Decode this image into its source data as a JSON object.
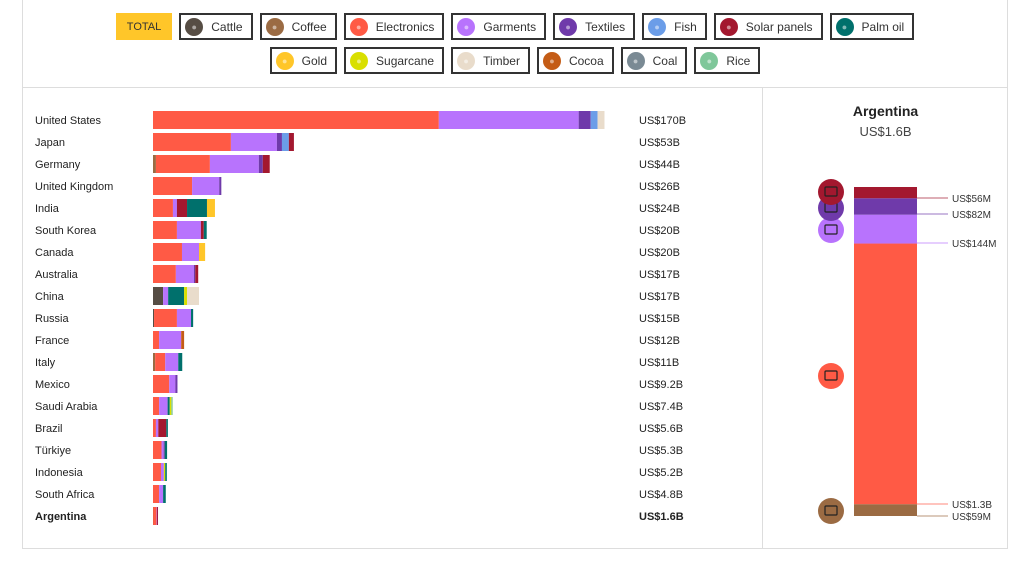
{
  "legend": {
    "total_label": "TOTAL",
    "items": [
      {
        "key": "cattle",
        "label": "Cattle",
        "color": "#564d44",
        "icon": "cow-icon"
      },
      {
        "key": "coffee",
        "label": "Coffee",
        "color": "#9b6b43",
        "icon": "coffee-bean-icon"
      },
      {
        "key": "electronics",
        "label": "Electronics",
        "color": "#ff5a45",
        "icon": "laptop-icon"
      },
      {
        "key": "garments",
        "label": "Garments",
        "color": "#b873fd",
        "icon": "tshirt-icon"
      },
      {
        "key": "textiles",
        "label": "Textiles",
        "color": "#6f3aaa",
        "icon": "fabric-icon"
      },
      {
        "key": "fish",
        "label": "Fish",
        "color": "#6b9de8",
        "icon": "fish-icon"
      },
      {
        "key": "solar",
        "label": "Solar panels",
        "color": "#a3182f",
        "icon": "solar-panel-icon"
      },
      {
        "key": "palm",
        "label": "Palm oil",
        "color": "#00706c",
        "icon": "oil-drop-icon"
      },
      {
        "key": "gold",
        "label": "Gold",
        "color": "#ffc629",
        "icon": "gold-icon"
      },
      {
        "key": "sugarcane",
        "label": "Sugarcane",
        "color": "#d9df00",
        "icon": "sugarcane-icon"
      },
      {
        "key": "timber",
        "label": "Timber",
        "color": "#e9dccb",
        "icon": "timber-icon"
      },
      {
        "key": "cocoa",
        "label": "Cocoa",
        "color": "#c45c16",
        "icon": "cocoa-icon"
      },
      {
        "key": "coal",
        "label": "Coal",
        "color": "#7a8a94",
        "icon": "coal-icon"
      },
      {
        "key": "rice",
        "label": "Rice",
        "color": "#7fc79a",
        "icon": "rice-icon"
      }
    ]
  },
  "chart_data": {
    "type": "bar",
    "orientation": "horizontal",
    "stacked": true,
    "unit": "US$ billions",
    "selected_country": "Argentina",
    "rows": [
      {
        "country": "United States",
        "total_label": "US$170B",
        "segments": {
          "electronics": 107.5,
          "garments": 52.6,
          "textiles": 4.5,
          "fish": 2.6,
          "timber": 2.6
        }
      },
      {
        "country": "Japan",
        "total_label": "US$53B",
        "segments": {
          "electronics": 29.3,
          "garments": 17.3,
          "textiles": 1.9,
          "fish": 2.6,
          "solar": 1.9
        }
      },
      {
        "country": "Germany",
        "total_label": "US$44B",
        "segments": {
          "coffee": 1.1,
          "electronics": 20.3,
          "garments": 18.4,
          "textiles": 1.5,
          "solar": 2.6
        }
      },
      {
        "country": "United Kingdom",
        "total_label": "US$26B",
        "segments": {
          "electronics": 14.7,
          "garments": 10.2,
          "textiles": 0.8
        }
      },
      {
        "country": "India",
        "total_label": "US$24B",
        "segments": {
          "electronics": 7.5,
          "garments": 1.5,
          "solar": 3.8,
          "palm": 7.5,
          "gold": 3.0
        }
      },
      {
        "country": "South Korea",
        "total_label": "US$20B",
        "segments": {
          "electronics": 9.0,
          "garments": 9.0,
          "solar": 1.1,
          "palm": 1.1
        }
      },
      {
        "country": "Canada",
        "total_label": "US$20B",
        "segments": {
          "electronics": 10.9,
          "garments": 6.4,
          "gold": 2.3
        }
      },
      {
        "country": "Australia",
        "total_label": "US$17B",
        "segments": {
          "electronics": 8.6,
          "garments": 6.8,
          "textiles": 0.5,
          "solar": 1.1
        }
      },
      {
        "country": "China",
        "total_label": "US$17B",
        "segments": {
          "cattle": 3.8,
          "garments": 1.9,
          "palm": 6.0,
          "sugarcane": 1.1,
          "timber": 4.5
        }
      },
      {
        "country": "Russia",
        "total_label": "US$15B",
        "segments": {
          "cattle": 0.4,
          "electronics": 8.6,
          "garments": 5.3,
          "palm": 0.8
        }
      },
      {
        "country": "France",
        "total_label": "US$12B",
        "segments": {
          "electronics": 2.3,
          "garments": 8.3,
          "cocoa": 1.1
        }
      },
      {
        "country": "Italy",
        "total_label": "US$11B",
        "segments": {
          "coffee": 0.8,
          "electronics": 3.8,
          "garments": 4.9,
          "palm": 1.5
        }
      },
      {
        "country": "Mexico",
        "total_label": "US$9.2B",
        "segments": {
          "electronics": 6.1,
          "garments": 2.3,
          "textiles": 0.8
        }
      },
      {
        "country": "Saudi Arabia",
        "total_label": "US$7.4B",
        "segments": {
          "electronics": 2.3,
          "garments": 3.2,
          "palm": 0.8,
          "sugarcane": 0.6,
          "rice": 0.5
        }
      },
      {
        "country": "Brazil",
        "total_label": "US$5.6B",
        "segments": {
          "electronics": 1.1,
          "garments": 0.9,
          "solar": 3.0,
          "palm": 0.6
        }
      },
      {
        "country": "Türkiye",
        "total_label": "US$5.3B",
        "segments": {
          "electronics": 3.2,
          "garments": 0.8,
          "textiles": 0.4,
          "palm": 0.9
        }
      },
      {
        "country": "Indonesia",
        "total_label": "US$5.2B",
        "segments": {
          "electronics": 3.0,
          "garments": 1.1,
          "sugarcane": 0.5,
          "palm": 0.6
        }
      },
      {
        "country": "South Africa",
        "total_label": "US$4.8B",
        "segments": {
          "electronics": 2.3,
          "garments": 1.5,
          "palm": 1.0
        }
      },
      {
        "country": "Argentina",
        "total_label": "US$1.6B",
        "segments": {
          "coffee": 0.059,
          "electronics": 1.3,
          "garments": 0.144,
          "textiles": 0.082,
          "solar": 0.056
        }
      }
    ],
    "xlim": [
      0,
      170
    ],
    "detail": {
      "title": "Argentina",
      "total": "US$1.6B",
      "segments": [
        {
          "key": "coffee",
          "value": 0.059,
          "label": "US$59M"
        },
        {
          "key": "electronics",
          "value": 1.3,
          "label": "US$1.3B"
        },
        {
          "key": "garments",
          "value": 0.144,
          "label": "US$144M"
        },
        {
          "key": "textiles",
          "value": 0.082,
          "label": "US$82M"
        },
        {
          "key": "solar",
          "value": 0.056,
          "label": "US$56M"
        }
      ]
    }
  }
}
